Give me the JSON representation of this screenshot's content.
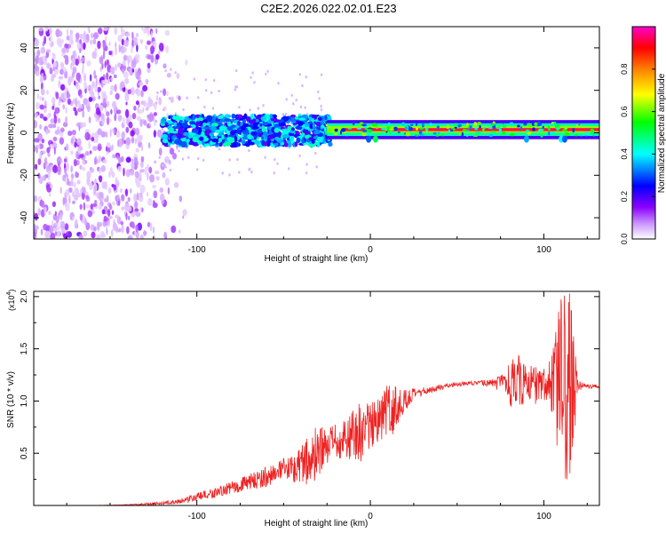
{
  "title": "C2E2.2026.022.02.01.E23",
  "chart_data": [
    {
      "type": "heatmap",
      "name": "spectrogram",
      "xlabel": "Height of straight line (km)",
      "ylabel": "Frequency (Hz)",
      "xlim": [
        -194,
        132
      ],
      "ylim": [
        -50,
        50
      ],
      "xticks": [
        -100,
        0,
        100
      ],
      "yticks": [
        -40,
        -20,
        0,
        20,
        40
      ],
      "xtick_labels": [
        "-100",
        "0",
        "100"
      ],
      "ytick_labels": [
        "-40",
        "-20",
        "0",
        "20",
        "40"
      ],
      "colorbar": {
        "label": "Normalized spectral amplitude",
        "range": [
          0,
          1
        ],
        "ticks": [
          "0.0",
          "0.2",
          "0.4",
          "0.6",
          "0.8"
        ],
        "tick_values": [
          0.0,
          0.2,
          0.4,
          0.6,
          0.8
        ],
        "colors": [
          "#ffffff",
          "#8b00ff",
          "#0000ff",
          "#00ffff",
          "#00ff00",
          "#ffff00",
          "#ff8000",
          "#ff0000",
          "#ff00cc"
        ]
      },
      "features": [
        {
          "region": "noise scatter",
          "x_range": [
            -194,
            -105
          ],
          "freq_range": [
            -50,
            50
          ],
          "level": 0.1
        },
        {
          "region": "broadband band",
          "x_range": [
            -120,
            -25
          ],
          "freq_range": [
            -8,
            10
          ],
          "level": 0.35
        },
        {
          "region": "narrow line",
          "x_range": [
            -25,
            132
          ],
          "freq_range": [
            0,
            3
          ],
          "level": 0.95
        }
      ]
    },
    {
      "type": "line",
      "name": "snr",
      "xlabel": "Height of straight line (km)",
      "ylabel": "SNR (10 * v/v)",
      "multiplier": "(x10",
      "multiplier_exp": "4",
      "multiplier_close": ")",
      "xlim": [
        -194,
        132
      ],
      "ylim": [
        0,
        2.05
      ],
      "xticks": [
        -100,
        0,
        100
      ],
      "yticks": [
        0.5,
        1.0,
        1.5,
        2.0
      ],
      "xtick_labels": [
        "-100",
        "0",
        "100"
      ],
      "ytick_labels": [
        "0.5",
        "1.0",
        "1.5",
        "2.0"
      ],
      "line_color": "#ee2222",
      "series": [
        {
          "name": "SNR",
          "x": [
            -194,
            -175,
            -160,
            -140,
            -125,
            -110,
            -100,
            -90,
            -80,
            -70,
            -60,
            -50,
            -45,
            -40,
            -35,
            -30,
            -25,
            -20,
            -15,
            -10,
            -5,
            0,
            5,
            10,
            15,
            20,
            25,
            30,
            35,
            40,
            45,
            50,
            55,
            60,
            65,
            70,
            75,
            80,
            85,
            90,
            95,
            100,
            105,
            110,
            115,
            120,
            125,
            132
          ],
          "y": [
            0.0,
            0.0,
            0.0,
            0.005,
            0.015,
            0.04,
            0.08,
            0.12,
            0.17,
            0.22,
            0.28,
            0.33,
            0.36,
            0.4,
            0.44,
            0.5,
            0.55,
            0.6,
            0.64,
            0.68,
            0.72,
            0.76,
            0.82,
            0.88,
            0.95,
            1.01,
            1.06,
            1.09,
            1.11,
            1.13,
            1.15,
            1.16,
            1.17,
            1.17,
            1.17,
            1.17,
            1.17,
            1.16,
            1.18,
            1.17,
            1.16,
            1.17,
            1.15,
            1.14,
            1.14,
            1.15,
            1.14,
            1.14
          ],
          "noise": [
            0.0,
            0.0,
            0.0,
            0.005,
            0.015,
            0.02,
            0.04,
            0.05,
            0.06,
            0.08,
            0.1,
            0.12,
            0.14,
            0.18,
            0.3,
            0.25,
            0.2,
            0.18,
            0.2,
            0.25,
            0.3,
            0.22,
            0.2,
            0.3,
            0.2,
            0.12,
            0.06,
            0.04,
            0.03,
            0.03,
            0.02,
            0.02,
            0.02,
            0.02,
            0.03,
            0.04,
            0.08,
            0.2,
            0.3,
            0.15,
            0.2,
            0.15,
            0.3,
            0.95,
            0.9,
            0.05,
            0.02,
            0.02
          ]
        }
      ]
    }
  ]
}
